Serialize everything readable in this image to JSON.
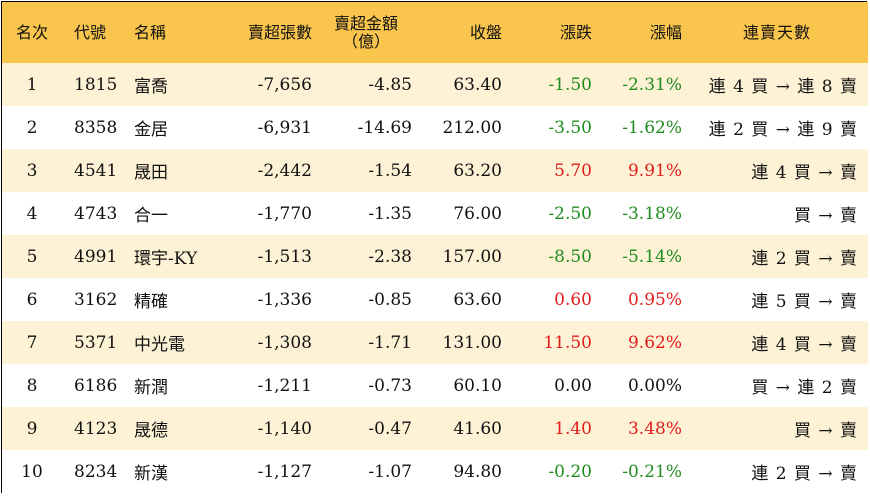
{
  "headers": {
    "rank": "名次",
    "code": "代號",
    "name": "名稱",
    "net_sell_lots": "賣超張數",
    "net_sell_amount_line1": "賣超金額",
    "net_sell_amount_line2": "（億）",
    "close": "收盤",
    "change": "漲跌",
    "change_pct": "漲幅",
    "streak": "連賣天數"
  },
  "colors": {
    "header_bg": "#f9c54c",
    "odd_row_bg": "#fdf2d5",
    "up": "#e31b1b",
    "down": "#1f8c1f"
  },
  "rows": [
    {
      "rank": "1",
      "code": "1815",
      "name": "富喬",
      "lots": "-7,656",
      "amount": "-4.85",
      "close": "63.40",
      "change": "-1.50",
      "pct": "-2.31%",
      "streak": "連 4 買 → 連 8 賣",
      "dir": "down"
    },
    {
      "rank": "2",
      "code": "8358",
      "name": "金居",
      "lots": "-6,931",
      "amount": "-14.69",
      "close": "212.00",
      "change": "-3.50",
      "pct": "-1.62%",
      "streak": "連 2 買 → 連 9 賣",
      "dir": "down"
    },
    {
      "rank": "3",
      "code": "4541",
      "name": "晟田",
      "lots": "-2,442",
      "amount": "-1.54",
      "close": "63.20",
      "change": "5.70",
      "pct": "9.91%",
      "streak": "連 4 買 → 賣",
      "dir": "up"
    },
    {
      "rank": "4",
      "code": "4743",
      "name": "合一",
      "lots": "-1,770",
      "amount": "-1.35",
      "close": "76.00",
      "change": "-2.50",
      "pct": "-3.18%",
      "streak": "買 → 賣",
      "dir": "down"
    },
    {
      "rank": "5",
      "code": "4991",
      "name": "環宇-KY",
      "lots": "-1,513",
      "amount": "-2.38",
      "close": "157.00",
      "change": "-8.50",
      "pct": "-5.14%",
      "streak": "連 2 買 → 賣",
      "dir": "down"
    },
    {
      "rank": "6",
      "code": "3162",
      "name": "精確",
      "lots": "-1,336",
      "amount": "-0.85",
      "close": "63.60",
      "change": "0.60",
      "pct": "0.95%",
      "streak": "連 5 買 → 賣",
      "dir": "up"
    },
    {
      "rank": "7",
      "code": "5371",
      "name": "中光電",
      "lots": "-1,308",
      "amount": "-1.71",
      "close": "131.00",
      "change": "11.50",
      "pct": "9.62%",
      "streak": "連 4 買 → 賣",
      "dir": "up"
    },
    {
      "rank": "8",
      "code": "6186",
      "name": "新潤",
      "lots": "-1,211",
      "amount": "-0.73",
      "close": "60.10",
      "change": "0.00",
      "pct": "0.00%",
      "streak": "買 → 連 2 賣",
      "dir": "flat"
    },
    {
      "rank": "9",
      "code": "4123",
      "name": "晟德",
      "lots": "-1,140",
      "amount": "-0.47",
      "close": "41.60",
      "change": "1.40",
      "pct": "3.48%",
      "streak": "買 → 賣",
      "dir": "up"
    },
    {
      "rank": "10",
      "code": "8234",
      "name": "新漢",
      "lots": "-1,127",
      "amount": "-1.07",
      "close": "94.80",
      "change": "-0.20",
      "pct": "-0.21%",
      "streak": "連 2 買 → 賣",
      "dir": "down"
    }
  ]
}
